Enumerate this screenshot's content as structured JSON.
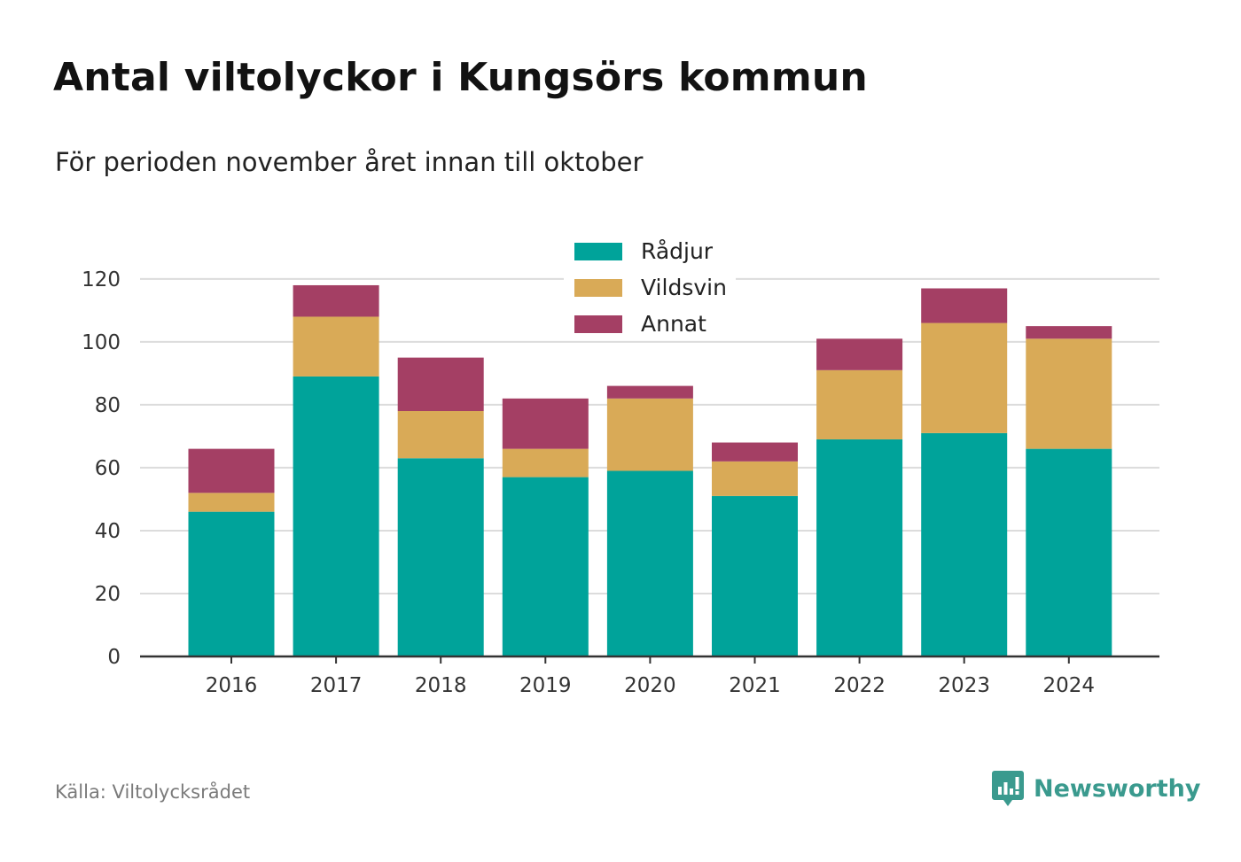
{
  "title": "Antal viltolyckor i Kungsörs kommun",
  "subtitle": "För perioden november året innan till oktober",
  "source": "Källa: Viltolycksrådet",
  "brand": {
    "name": "Newsworthy",
    "icon": "newsworthy-logo-icon",
    "color": "#3a9a8e"
  },
  "chart_data": {
    "type": "bar",
    "stacked": true,
    "categories": [
      "2016",
      "2017",
      "2018",
      "2019",
      "2020",
      "2021",
      "2022",
      "2023",
      "2024"
    ],
    "series": [
      {
        "name": "Rådjur",
        "color": "#00a39a",
        "values": [
          46,
          89,
          63,
          57,
          59,
          51,
          69,
          71,
          66
        ]
      },
      {
        "name": "Vildsvin",
        "color": "#d9aa57",
        "values": [
          6,
          19,
          15,
          9,
          23,
          11,
          22,
          35,
          35
        ]
      },
      {
        "name": "Annat",
        "color": "#a43f64",
        "values": [
          14,
          10,
          17,
          16,
          4,
          6,
          10,
          11,
          4
        ]
      }
    ],
    "yticks": [
      0,
      20,
      40,
      60,
      80,
      100,
      120
    ],
    "ylim": [
      0,
      127
    ],
    "grid": true,
    "legend": "top-center"
  }
}
